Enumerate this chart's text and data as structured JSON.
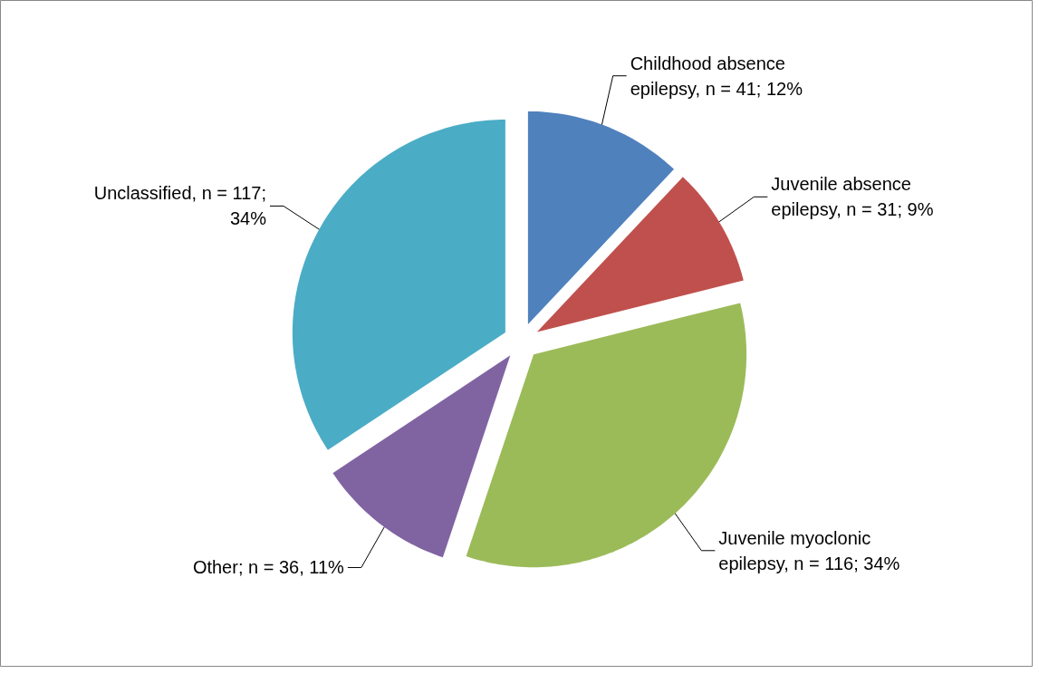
{
  "chart_data": {
    "type": "pie",
    "categories": [
      "Childhood absence epilepsy, n = 41; 12%",
      "Juvenile absence epilepsy, n = 31; 9%",
      "Juvenile myoclonic epilepsy, n = 116; 34%",
      "Other; n = 36, 11%",
      "Unclassified, n = 117; 34%"
    ],
    "values": [
      41,
      31,
      116,
      36,
      117
    ],
    "colors": [
      "#4f81bd",
      "#c0504d",
      "#9bbb59",
      "#8064a2",
      "#4bacc6"
    ]
  }
}
